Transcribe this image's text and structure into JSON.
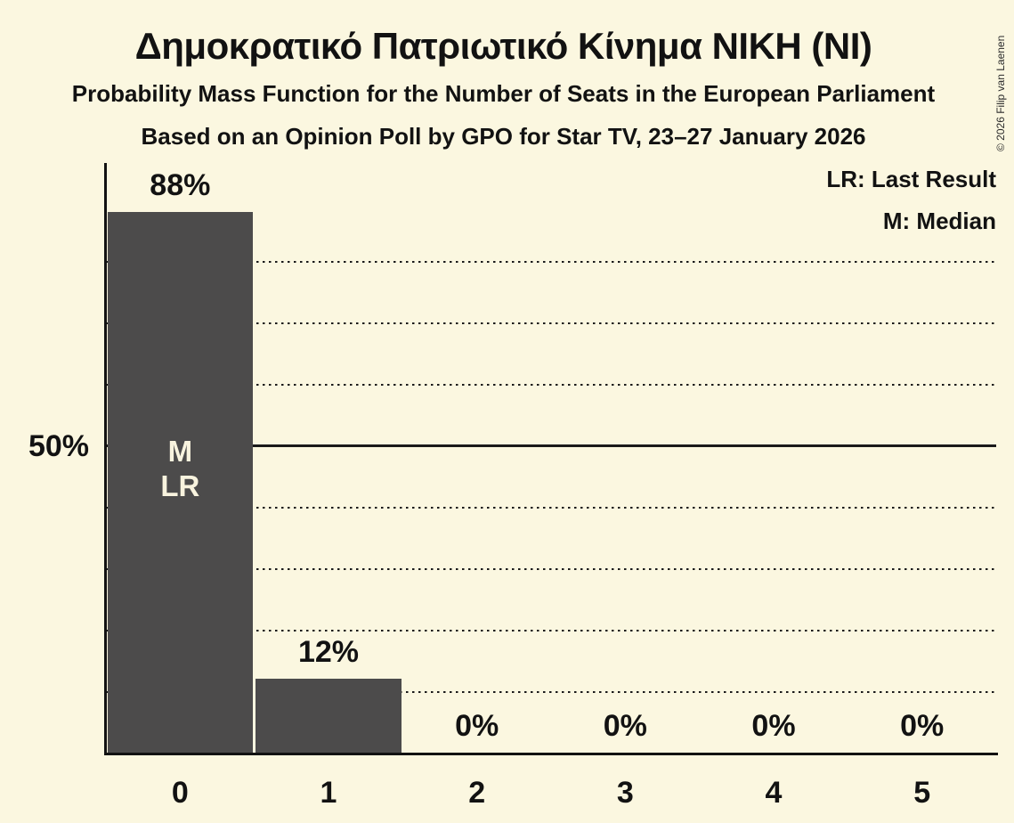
{
  "chart_data": {
    "type": "bar",
    "title": "Δημοκρατικό Πατριωτικό Κίνημα ΝΙΚΗ (ΝΙ)",
    "subtitle": "Probability Mass Function for the Number of Seats in the European Parliament",
    "subsubtitle": "Based on an Opinion Poll by GPO for Star TV, 23–27 January 2026",
    "categories": [
      "0",
      "1",
      "2",
      "3",
      "4",
      "5"
    ],
    "values": [
      88,
      12,
      0,
      0,
      0,
      0
    ],
    "value_labels": [
      "88%",
      "12%",
      "0%",
      "0%",
      "0%",
      "0%"
    ],
    "xlabel": "",
    "ylabel": "",
    "y_tick_label": "50%",
    "ylim": [
      0,
      96
    ],
    "gridlines_pct": [
      10,
      20,
      30,
      40,
      50,
      60,
      70,
      80
    ],
    "solid_gridline_pct": 50,
    "grid": true,
    "legend_position": "top-right",
    "legend": [
      "LR: Last Result",
      "M: Median"
    ],
    "bar_annotations": [
      {
        "bar_index": 0,
        "lines": [
          "M",
          "LR"
        ]
      }
    ],
    "copyright": "© 2026 Filip van Laenen",
    "colors": {
      "background": "#fbf7e0",
      "bar": "#4c4b4b",
      "text": "#121212",
      "bar_label_text": "#f8f3de",
      "gridline": "#1a1a1a",
      "axis": "#121212",
      "copyright_text": "#2a2a2a"
    }
  }
}
